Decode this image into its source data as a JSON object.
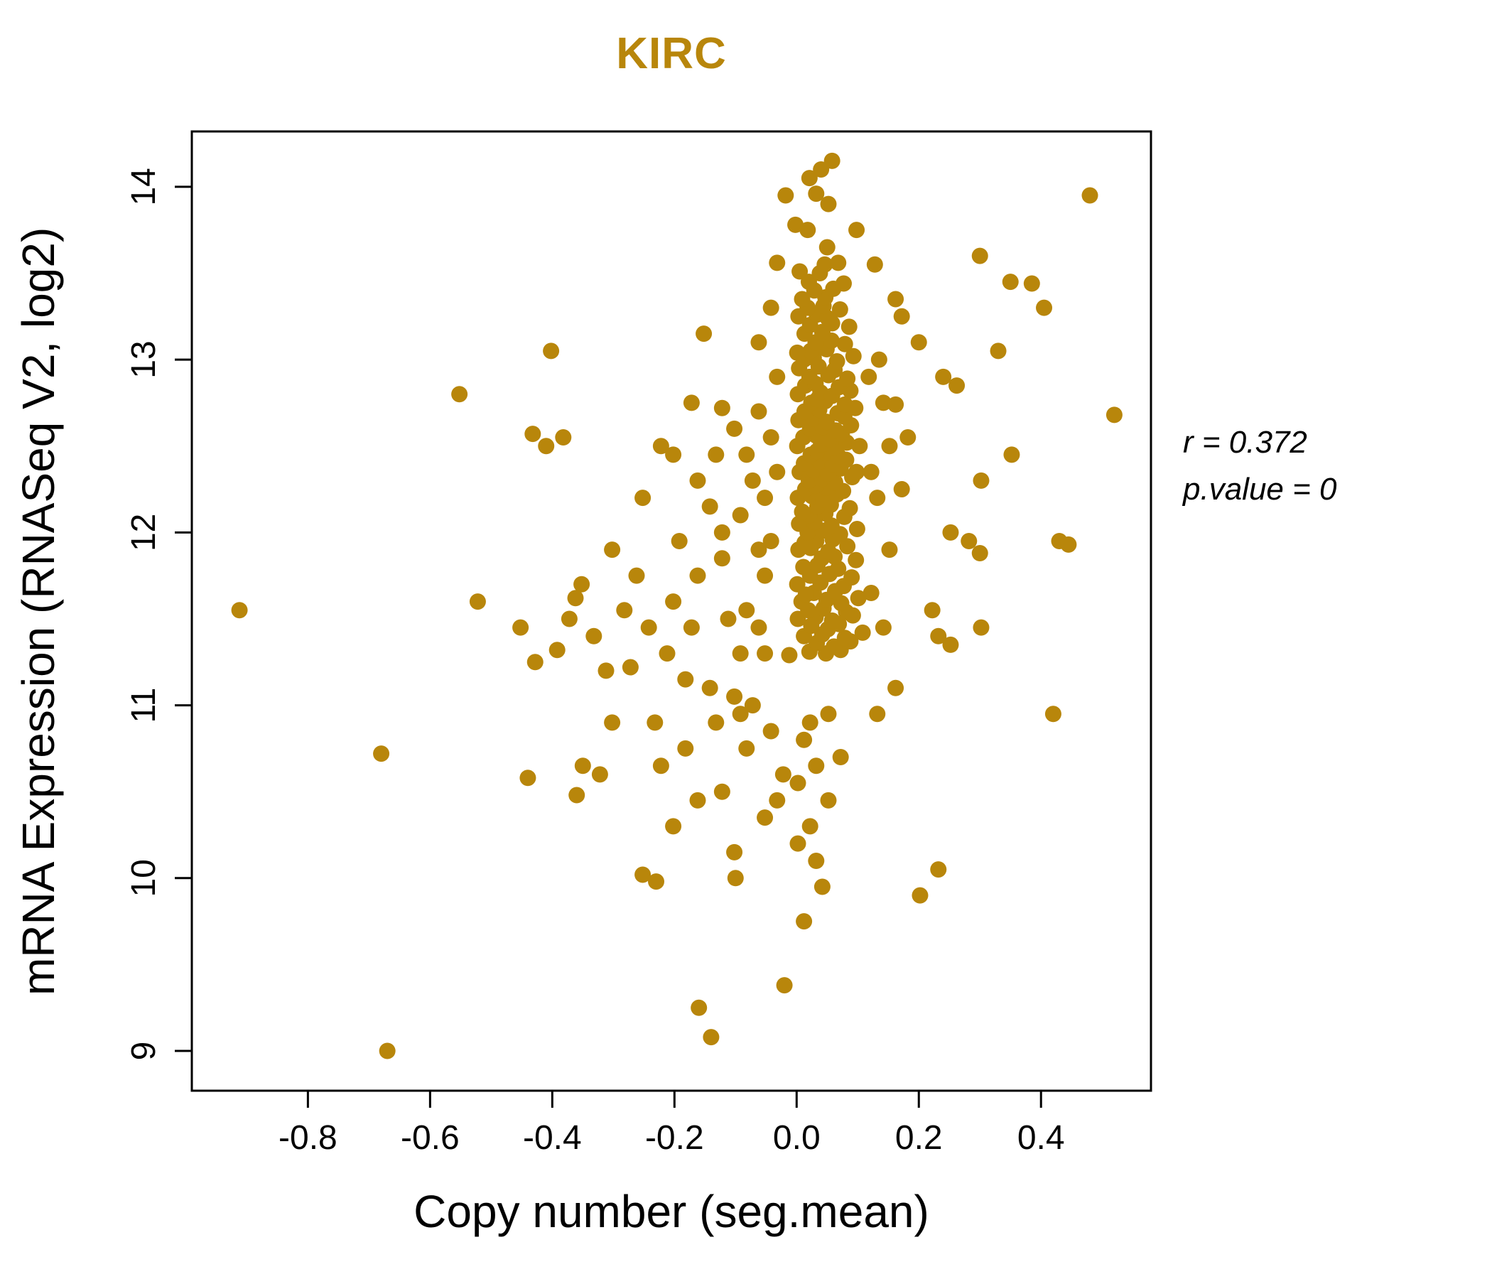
{
  "colors": {
    "accent": "#B8860B",
    "axis": "#000000"
  },
  "annotation": {
    "line1": "r = 0.372",
    "line2": "p.value = 0"
  },
  "chart_data": {
    "type": "scatter",
    "title": "KIRC",
    "xlabel": "Copy number (seg.mean)",
    "ylabel": "mRNA Expression (RNASeq V2, log2)",
    "xlim": [
      -0.99,
      0.58
    ],
    "ylim": [
      8.77,
      14.32
    ],
    "x_ticks": [
      -0.8,
      -0.6,
      -0.4,
      -0.2,
      0.0,
      0.2,
      0.4
    ],
    "x_tick_labels": [
      "-0.8",
      "-0.6",
      "-0.4",
      "-0.2",
      "0.0",
      "0.2",
      "0.4"
    ],
    "y_ticks": [
      9,
      10,
      11,
      12,
      13,
      14
    ],
    "y_tick_labels": [
      "9",
      "10",
      "11",
      "12",
      "13",
      "14"
    ],
    "grid": false,
    "legend": "none",
    "point_color": "#B8860B",
    "annotations": [
      "r = 0.372",
      "p.value = 0"
    ],
    "points": [
      [
        0.021,
        11.31
      ],
      [
        0.048,
        11.3
      ],
      [
        0.072,
        11.32
      ],
      [
        -0.012,
        11.29
      ],
      [
        0.033,
        11.36
      ],
      [
        0.061,
        11.34
      ],
      [
        0.088,
        11.37
      ],
      [
        0.012,
        11.4
      ],
      [
        0.042,
        11.41
      ],
      [
        0.079,
        11.39
      ],
      [
        0.108,
        11.42
      ],
      [
        0.024,
        11.46
      ],
      [
        0.051,
        11.44
      ],
      [
        0.069,
        11.47
      ],
      [
        0.002,
        11.5
      ],
      [
        0.031,
        11.51
      ],
      [
        0.058,
        11.49
      ],
      [
        0.092,
        11.52
      ],
      [
        0.019,
        11.55
      ],
      [
        0.044,
        11.56
      ],
      [
        0.081,
        11.54
      ],
      [
        0.008,
        11.6
      ],
      [
        0.049,
        11.61
      ],
      [
        0.073,
        11.59
      ],
      [
        0.101,
        11.62
      ],
      [
        0.028,
        11.65
      ],
      [
        0.063,
        11.66
      ],
      [
        0.015,
        11.64
      ],
      [
        0.001,
        11.7
      ],
      [
        0.039,
        11.71
      ],
      [
        0.077,
        11.69
      ],
      [
        0.022,
        11.75
      ],
      [
        0.054,
        11.76
      ],
      [
        0.09,
        11.74
      ],
      [
        0.011,
        11.8
      ],
      [
        0.034,
        11.81
      ],
      [
        0.068,
        11.79
      ],
      [
        0.041,
        11.85
      ],
      [
        0.062,
        11.86
      ],
      [
        0.097,
        11.84
      ],
      [
        0.003,
        11.9
      ],
      [
        0.023,
        11.91
      ],
      [
        0.052,
        11.89
      ],
      [
        0.083,
        11.92
      ],
      [
        0.032,
        11.95
      ],
      [
        0.059,
        11.96
      ],
      [
        0.013,
        11.94
      ],
      [
        0.018,
        12.0
      ],
      [
        0.043,
        12.01
      ],
      [
        0.071,
        11.99
      ],
      [
        0.099,
        12.02
      ],
      [
        0.004,
        12.05
      ],
      [
        0.029,
        12.06
      ],
      [
        0.057,
        12.04
      ],
      [
        0.021,
        12.1
      ],
      [
        0.047,
        12.11
      ],
      [
        0.078,
        12.09
      ],
      [
        0.009,
        12.12
      ],
      [
        0.034,
        12.15
      ],
      [
        0.056,
        12.16
      ],
      [
        0.087,
        12.14
      ],
      [
        0.002,
        12.2
      ],
      [
        0.025,
        12.21
      ],
      [
        0.044,
        12.19
      ],
      [
        0.066,
        12.22
      ],
      [
        0.014,
        12.25
      ],
      [
        0.048,
        12.26
      ],
      [
        0.076,
        12.24
      ],
      [
        0.031,
        12.27
      ],
      [
        0.02,
        12.3
      ],
      [
        0.042,
        12.31
      ],
      [
        0.063,
        12.29
      ],
      [
        0.091,
        12.32
      ],
      [
        0.005,
        12.35
      ],
      [
        0.028,
        12.36
      ],
      [
        0.051,
        12.34
      ],
      [
        0.072,
        12.37
      ],
      [
        0.098,
        12.35
      ],
      [
        0.012,
        12.4
      ],
      [
        0.038,
        12.41
      ],
      [
        0.059,
        12.39
      ],
      [
        0.081,
        12.42
      ],
      [
        0.023,
        12.45
      ],
      [
        0.046,
        12.46
      ],
      [
        0.069,
        12.44
      ],
      [
        0.033,
        12.47
      ],
      [
        0.001,
        12.5
      ],
      [
        0.04,
        12.51
      ],
      [
        0.061,
        12.49
      ],
      [
        0.082,
        12.52
      ],
      [
        0.103,
        12.5
      ],
      [
        0.011,
        12.55
      ],
      [
        0.032,
        12.56
      ],
      [
        0.053,
        12.54
      ],
      [
        0.074,
        12.57
      ],
      [
        0.022,
        12.6
      ],
      [
        0.043,
        12.61
      ],
      [
        0.064,
        12.59
      ],
      [
        0.089,
        12.62
      ],
      [
        0.003,
        12.65
      ],
      [
        0.027,
        12.66
      ],
      [
        0.049,
        12.64
      ],
      [
        0.078,
        12.67
      ],
      [
        0.013,
        12.7
      ],
      [
        0.037,
        12.71
      ],
      [
        0.067,
        12.69
      ],
      [
        0.096,
        12.72
      ],
      [
        0.024,
        12.75
      ],
      [
        0.047,
        12.76
      ],
      [
        0.079,
        12.74
      ],
      [
        0.034,
        12.77
      ],
      [
        0.002,
        12.8
      ],
      [
        0.039,
        12.81
      ],
      [
        0.058,
        12.79
      ],
      [
        0.088,
        12.82
      ],
      [
        0.014,
        12.85
      ],
      [
        0.031,
        12.86
      ],
      [
        0.069,
        12.84
      ],
      [
        0.021,
        12.9
      ],
      [
        0.052,
        12.91
      ],
      [
        0.083,
        12.89
      ],
      [
        0.004,
        12.95
      ],
      [
        0.036,
        12.96
      ],
      [
        0.062,
        12.94
      ],
      [
        0.012,
        13.0
      ],
      [
        0.028,
        13.01
      ],
      [
        0.066,
        12.99
      ],
      [
        0.093,
        13.02
      ],
      [
        0.023,
        13.05
      ],
      [
        0.049,
        13.06
      ],
      [
        0.001,
        13.04
      ],
      [
        0.031,
        13.1
      ],
      [
        0.057,
        13.11
      ],
      [
        0.079,
        13.09
      ],
      [
        0.013,
        13.15
      ],
      [
        0.042,
        13.16
      ],
      [
        0.022,
        13.2
      ],
      [
        0.058,
        13.21
      ],
      [
        0.086,
        13.19
      ],
      [
        0.003,
        13.25
      ],
      [
        0.033,
        13.26
      ],
      [
        0.051,
        13.24
      ],
      [
        0.018,
        13.3
      ],
      [
        0.044,
        13.31
      ],
      [
        0.071,
        13.29
      ],
      [
        0.009,
        13.35
      ],
      [
        0.047,
        13.36
      ],
      [
        0.029,
        13.4
      ],
      [
        0.06,
        13.41
      ],
      [
        0.02,
        13.45
      ],
      [
        0.077,
        13.44
      ],
      [
        0.038,
        13.5
      ],
      [
        0.005,
        13.51
      ],
      [
        0.046,
        13.55
      ],
      [
        -0.018,
        13.95
      ],
      [
        0.021,
        14.05
      ],
      [
        0.04,
        14.1
      ],
      [
        0.058,
        14.15
      ],
      [
        0.032,
        13.96
      ],
      [
        0.052,
        13.9
      ],
      [
        -0.002,
        13.78
      ],
      [
        0.018,
        13.75
      ],
      [
        0.05,
        13.65
      ],
      [
        0.068,
        13.56
      ],
      [
        0.098,
        13.75
      ],
      [
        0.128,
        13.55
      ],
      [
        -0.032,
        13.56
      ],
      [
        -0.042,
        13.3
      ],
      [
        0.48,
        13.95
      ],
      [
        0.3,
        13.6
      ],
      [
        0.35,
        13.45
      ],
      [
        0.385,
        13.44
      ],
      [
        0.405,
        13.3
      ],
      [
        0.33,
        13.05
      ],
      [
        0.162,
        13.35
      ],
      [
        0.172,
        13.25
      ],
      [
        0.2,
        13.1
      ],
      [
        0.24,
        12.9
      ],
      [
        0.262,
        12.85
      ],
      [
        0.52,
        12.68
      ],
      [
        0.43,
        11.95
      ],
      [
        0.445,
        11.93
      ],
      [
        0.42,
        10.95
      ],
      [
        0.352,
        12.45
      ],
      [
        0.302,
        12.3
      ],
      [
        0.282,
        11.95
      ],
      [
        0.3,
        11.88
      ],
      [
        0.252,
        12.0
      ],
      [
        0.222,
        11.55
      ],
      [
        0.232,
        11.4
      ],
      [
        0.252,
        11.35
      ],
      [
        0.302,
        11.45
      ],
      [
        0.172,
        12.25
      ],
      [
        0.152,
        12.5
      ],
      [
        0.142,
        12.75
      ],
      [
        0.162,
        12.74
      ],
      [
        0.182,
        12.55
      ],
      [
        0.132,
        12.2
      ],
      [
        0.152,
        11.9
      ],
      [
        0.122,
        11.65
      ],
      [
        0.142,
        11.45
      ],
      [
        0.162,
        11.1
      ],
      [
        0.132,
        10.95
      ],
      [
        0.232,
        10.05
      ],
      [
        0.202,
        9.9
      ],
      [
        0.122,
        12.35
      ],
      [
        0.118,
        12.9
      ],
      [
        0.135,
        13.0
      ],
      [
        -0.02,
        9.38
      ],
      [
        -0.16,
        9.25
      ],
      [
        -0.14,
        9.08
      ],
      [
        -0.67,
        9.0
      ],
      [
        0.012,
        9.75
      ],
      [
        0.042,
        9.95
      ],
      [
        -0.1,
        10.0
      ],
      [
        -0.23,
        9.98
      ],
      [
        -0.252,
        10.02
      ],
      [
        -0.102,
        10.15
      ],
      [
        0.002,
        10.2
      ],
      [
        0.022,
        10.3
      ],
      [
        -0.052,
        10.35
      ],
      [
        -0.032,
        10.45
      ],
      [
        0.002,
        10.55
      ],
      [
        -0.022,
        10.6
      ],
      [
        0.032,
        10.65
      ],
      [
        -0.082,
        10.75
      ],
      [
        0.012,
        10.8
      ],
      [
        -0.042,
        10.85
      ],
      [
        0.022,
        10.9
      ],
      [
        -0.36,
        10.48
      ],
      [
        -0.35,
        10.65
      ],
      [
        -0.322,
        10.6
      ],
      [
        -0.302,
        10.9
      ],
      [
        -0.44,
        10.58
      ],
      [
        -0.68,
        10.72
      ],
      [
        -0.202,
        10.3
      ],
      [
        -0.162,
        10.45
      ],
      [
        -0.222,
        10.65
      ],
      [
        -0.122,
        10.5
      ],
      [
        -0.182,
        10.75
      ],
      [
        -0.132,
        10.9
      ],
      [
        -0.072,
        11.0
      ],
      [
        0.052,
        10.95
      ],
      [
        0.072,
        10.7
      ],
      [
        0.052,
        10.45
      ],
      [
        0.032,
        10.1
      ],
      [
        -0.41,
        12.5
      ],
      [
        -0.382,
        12.55
      ],
      [
        -0.402,
        13.05
      ],
      [
        -0.552,
        12.8
      ],
      [
        -0.522,
        11.6
      ],
      [
        -0.452,
        11.45
      ],
      [
        -0.352,
        11.7
      ],
      [
        -0.362,
        11.62
      ],
      [
        -0.372,
        11.5
      ],
      [
        -0.332,
        11.4
      ],
      [
        -0.302,
        11.9
      ],
      [
        -0.282,
        11.55
      ],
      [
        -0.272,
        11.22
      ],
      [
        -0.312,
        11.2
      ],
      [
        -0.252,
        12.2
      ],
      [
        -0.262,
        11.75
      ],
      [
        -0.242,
        11.45
      ],
      [
        -0.222,
        12.5
      ],
      [
        -0.202,
        12.45
      ],
      [
        -0.202,
        11.6
      ],
      [
        -0.182,
        11.15
      ],
      [
        -0.152,
        13.15
      ],
      [
        -0.132,
        12.45
      ],
      [
        -0.122,
        12.0
      ],
      [
        -0.142,
        11.1
      ],
      [
        -0.102,
        11.05
      ],
      [
        -0.172,
        11.45
      ],
      [
        -0.162,
        11.75
      ],
      [
        -0.112,
        11.5
      ],
      [
        -0.092,
        11.3
      ],
      [
        -0.102,
        12.6
      ],
      [
        -0.082,
        12.45
      ],
      [
        -0.072,
        12.3
      ],
      [
        -0.092,
        12.1
      ],
      [
        -0.062,
        11.9
      ],
      [
        -0.052,
        11.75
      ],
      [
        -0.082,
        11.55
      ],
      [
        -0.062,
        11.45
      ],
      [
        -0.052,
        11.3
      ],
      [
        -0.042,
        12.55
      ],
      [
        -0.062,
        12.7
      ],
      [
        -0.032,
        12.35
      ],
      [
        -0.052,
        12.2
      ],
      [
        -0.042,
        11.95
      ],
      [
        -0.122,
        11.85
      ],
      [
        -0.142,
        12.15
      ],
      [
        -0.162,
        12.3
      ],
      [
        -0.192,
        11.95
      ],
      [
        -0.212,
        11.3
      ],
      [
        -0.232,
        10.9
      ],
      [
        -0.092,
        10.95
      ],
      [
        -0.912,
        11.55
      ],
      [
        -0.428,
        11.25
      ],
      [
        -0.392,
        11.32
      ],
      [
        -0.432,
        12.57
      ],
      [
        -0.172,
        12.75
      ],
      [
        -0.122,
        12.72
      ],
      [
        -0.062,
        13.1
      ],
      [
        -0.032,
        12.9
      ]
    ]
  }
}
